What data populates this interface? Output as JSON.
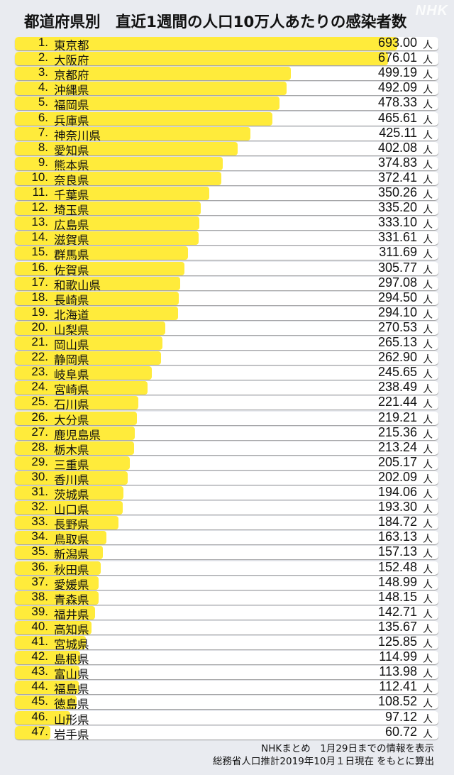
{
  "title": "都道府県別　直近1週間の人口10万人あたりの感染者数",
  "logo": "NHK",
  "footer": [
    "NHKまとめ　1月29日までの情報を表示",
    "総務省人口推計2019年10月１日現在 をもとに算出"
  ],
  "colors": {
    "bar": "#ffeb3b",
    "row": "#ffffff",
    "background": "#e9ebf0"
  },
  "chart_data": {
    "type": "bar",
    "orientation": "horizontal",
    "title": "都道府県別　直近1週間の人口10万人あたりの感染者数",
    "unit": "人",
    "rows": [
      {
        "rank": "1.",
        "name": "東京都",
        "value": 693.0
      },
      {
        "rank": "2.",
        "name": "大阪府",
        "value": 676.01
      },
      {
        "rank": "3.",
        "name": "京都府",
        "value": 499.19
      },
      {
        "rank": "4.",
        "name": "沖縄県",
        "value": 492.09
      },
      {
        "rank": "5.",
        "name": "福岡県",
        "value": 478.33
      },
      {
        "rank": "6.",
        "name": "兵庫県",
        "value": 465.61
      },
      {
        "rank": "7.",
        "name": "神奈川県",
        "value": 425.11
      },
      {
        "rank": "8.",
        "name": "愛知県",
        "value": 402.08
      },
      {
        "rank": "9.",
        "name": "熊本県",
        "value": 374.83
      },
      {
        "rank": "10.",
        "name": "奈良県",
        "value": 372.41
      },
      {
        "rank": "11.",
        "name": "千葉県",
        "value": 350.26
      },
      {
        "rank": "12.",
        "name": "埼玉県",
        "value": 335.2
      },
      {
        "rank": "13.",
        "name": "広島県",
        "value": 333.1
      },
      {
        "rank": "14.",
        "name": "滋賀県",
        "value": 331.61
      },
      {
        "rank": "15.",
        "name": "群馬県",
        "value": 311.69
      },
      {
        "rank": "16.",
        "name": "佐賀県",
        "value": 305.77
      },
      {
        "rank": "17.",
        "name": "和歌山県",
        "value": 297.08
      },
      {
        "rank": "18.",
        "name": "長崎県",
        "value": 294.5
      },
      {
        "rank": "19.",
        "name": "北海道",
        "value": 294.1
      },
      {
        "rank": "20.",
        "name": "山梨県",
        "value": 270.53
      },
      {
        "rank": "21.",
        "name": "岡山県",
        "value": 265.13
      },
      {
        "rank": "22.",
        "name": "静岡県",
        "value": 262.9
      },
      {
        "rank": "23.",
        "name": "岐阜県",
        "value": 245.65
      },
      {
        "rank": "24.",
        "name": "宮崎県",
        "value": 238.49
      },
      {
        "rank": "25.",
        "name": "石川県",
        "value": 221.44
      },
      {
        "rank": "26.",
        "name": "大分県",
        "value": 219.21
      },
      {
        "rank": "27.",
        "name": "鹿児島県",
        "value": 215.36
      },
      {
        "rank": "28.",
        "name": "栃木県",
        "value": 213.24
      },
      {
        "rank": "29.",
        "name": "三重県",
        "value": 205.17
      },
      {
        "rank": "30.",
        "name": "香川県",
        "value": 202.09
      },
      {
        "rank": "31.",
        "name": "茨城県",
        "value": 194.06
      },
      {
        "rank": "32.",
        "name": "山口県",
        "value": 193.3
      },
      {
        "rank": "33.",
        "name": "長野県",
        "value": 184.72
      },
      {
        "rank": "34.",
        "name": "鳥取県",
        "value": 163.13
      },
      {
        "rank": "35.",
        "name": "新潟県",
        "value": 157.13
      },
      {
        "rank": "36.",
        "name": "秋田県",
        "value": 152.48
      },
      {
        "rank": "37.",
        "name": "愛媛県",
        "value": 148.99
      },
      {
        "rank": "38.",
        "name": "青森県",
        "value": 148.15
      },
      {
        "rank": "39.",
        "name": "福井県",
        "value": 142.71
      },
      {
        "rank": "40.",
        "name": "高知県",
        "value": 135.67
      },
      {
        "rank": "41.",
        "name": "宮城県",
        "value": 125.85
      },
      {
        "rank": "42.",
        "name": "島根県",
        "value": 114.99
      },
      {
        "rank": "43.",
        "name": "富山県",
        "value": 113.98
      },
      {
        "rank": "44.",
        "name": "福島県",
        "value": 112.41
      },
      {
        "rank": "45.",
        "name": "徳島県",
        "value": 108.52
      },
      {
        "rank": "46.",
        "name": "山形県",
        "value": 97.12
      },
      {
        "rank": "47.",
        "name": "岩手県",
        "value": 60.72
      }
    ]
  }
}
